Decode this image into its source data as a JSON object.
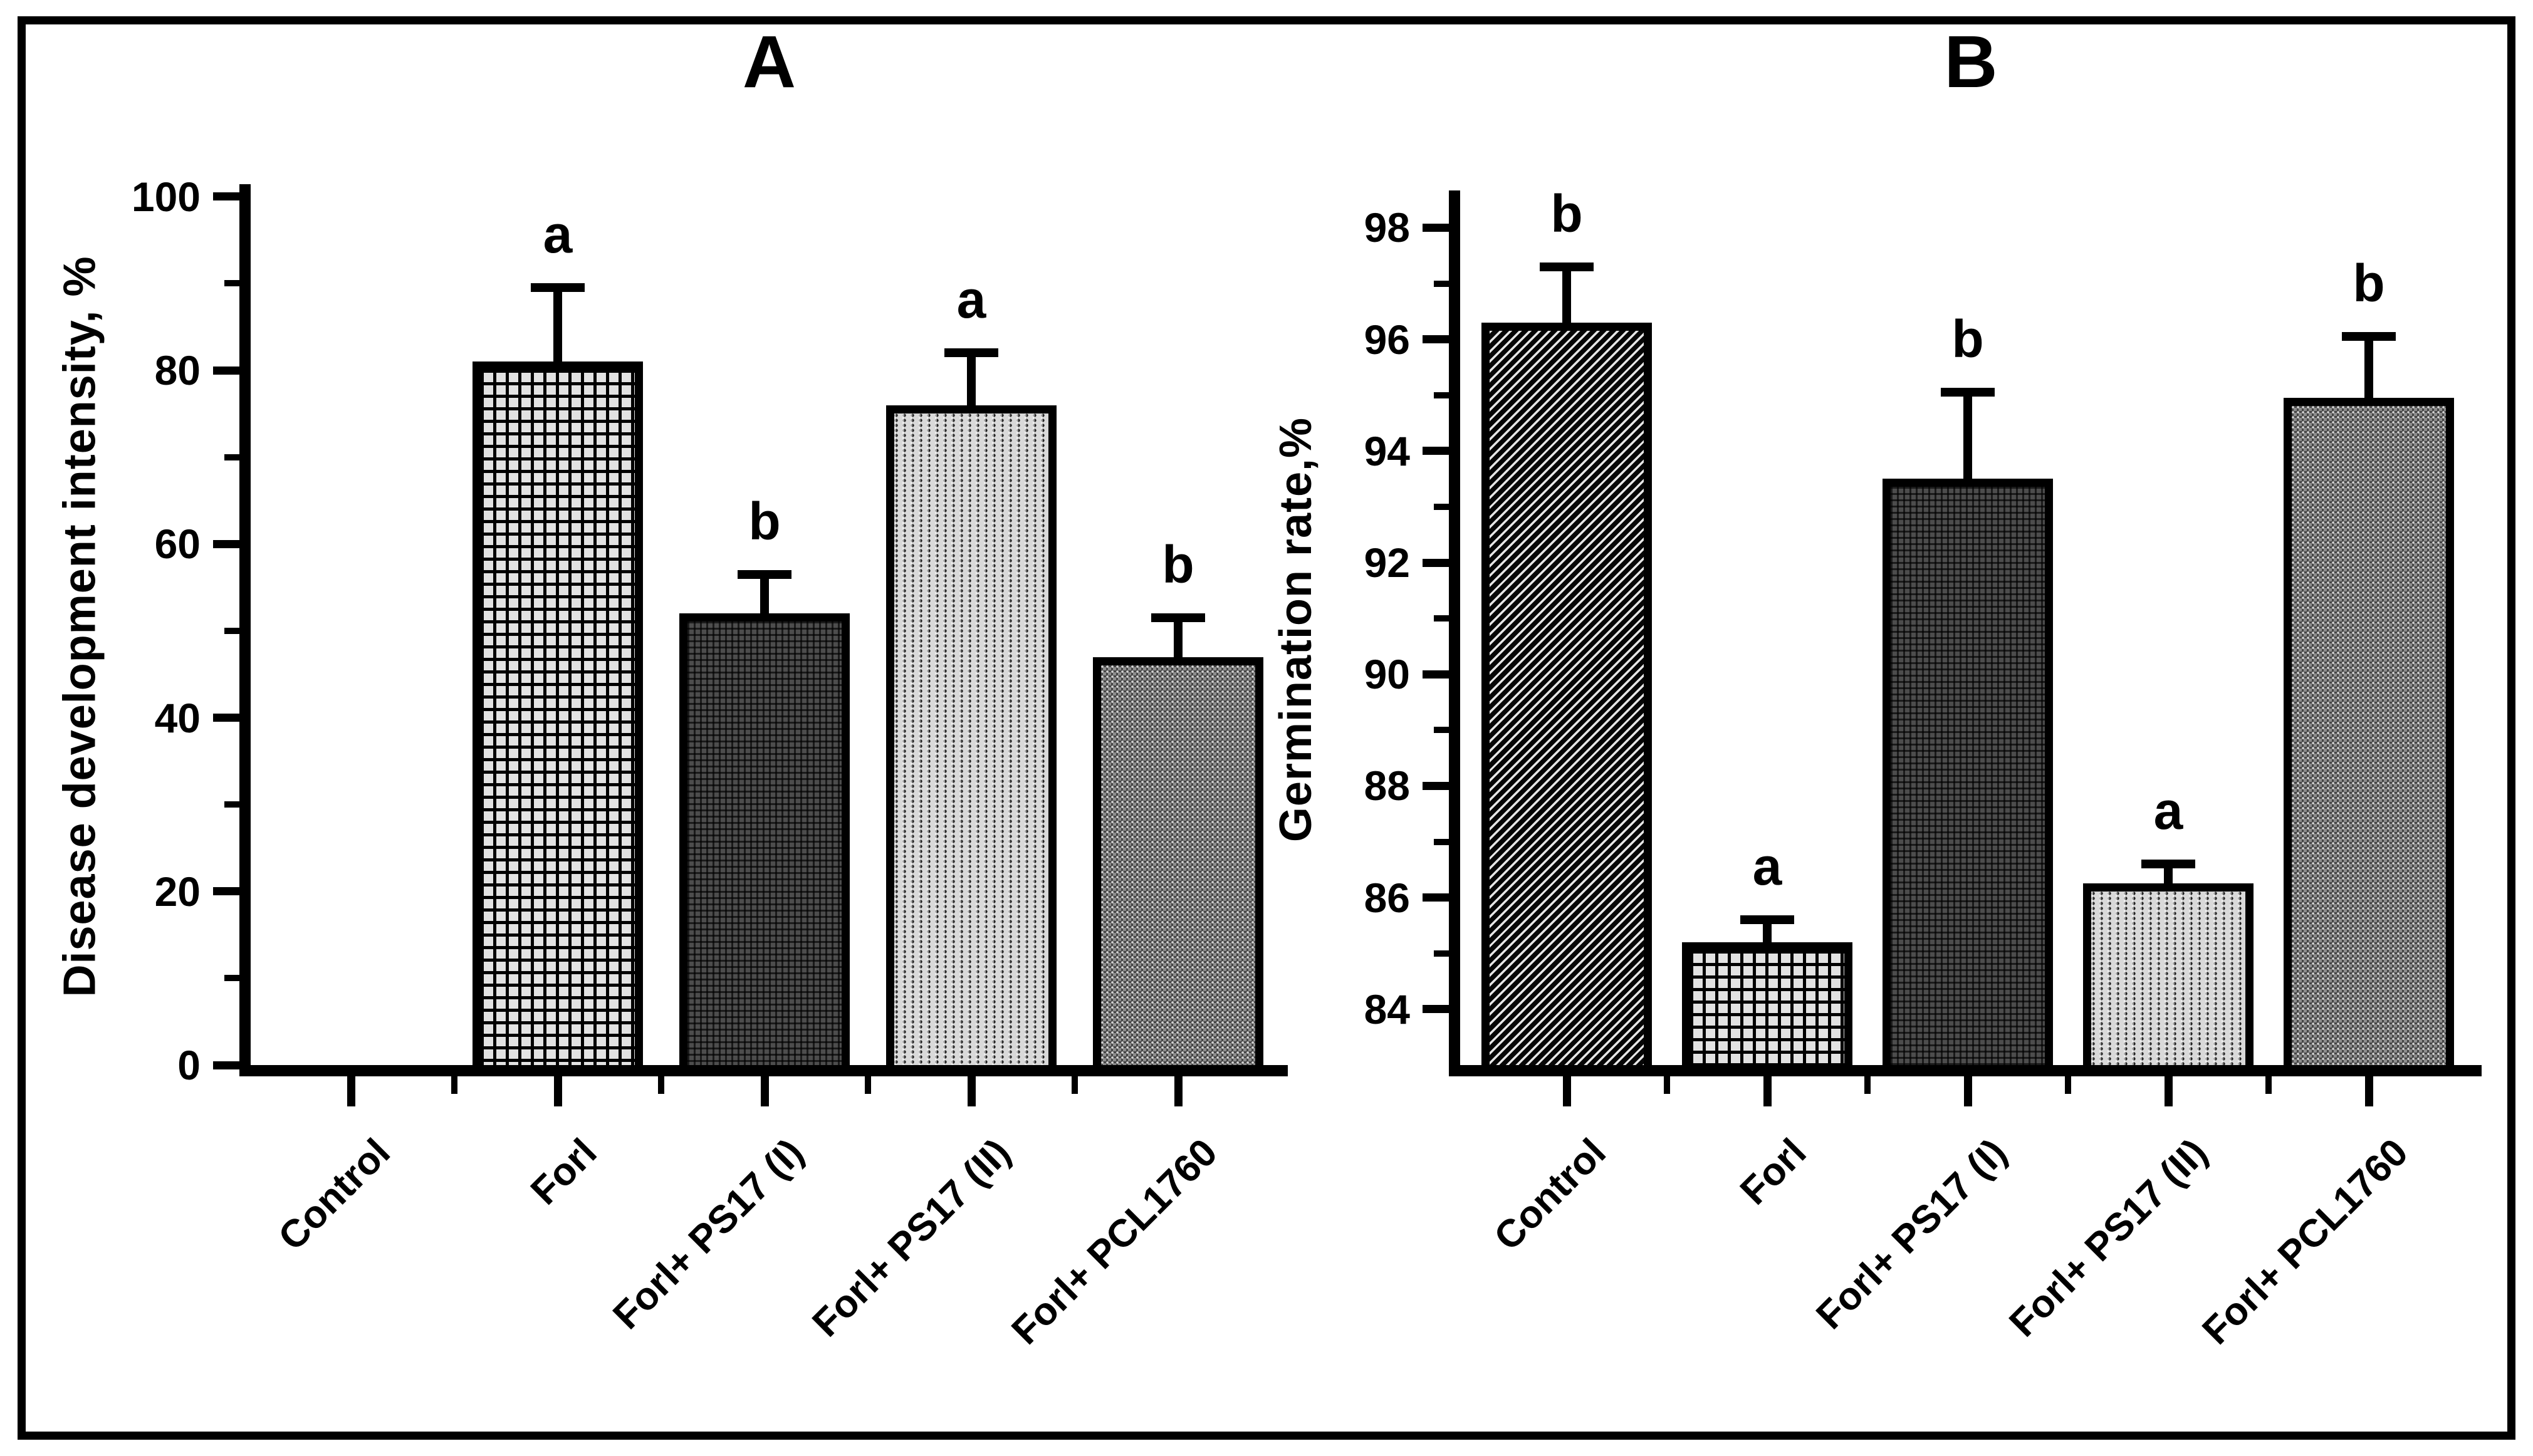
{
  "figure": {
    "background": "#ffffff",
    "border_color": "#000000",
    "text_color": "#000000"
  },
  "chart_data": [
    {
      "type": "bar",
      "panel_label": "A",
      "title": "A",
      "xlabel": "",
      "ylabel": "Disease development intensity, %",
      "ylim": [
        0,
        101
      ],
      "yticks": [
        0,
        20,
        40,
        60,
        80,
        100
      ],
      "yminorticks": [
        10,
        30,
        50,
        70,
        90
      ],
      "grid": false,
      "legend": "none",
      "categories": [
        "Control",
        "Forl",
        "Forl+ PS17 (I)",
        "Forl+ PS17 (II)",
        "Forl+ PCL1760"
      ],
      "values": [
        0,
        81,
        52,
        76,
        47
      ],
      "errors_upper": [
        null,
        8.5,
        4.5,
        6,
        4.5
      ],
      "sig_letters": [
        null,
        "a",
        "b",
        "a",
        "b"
      ],
      "patterns": [
        "none",
        "grid",
        "darkdot",
        "vdots",
        "mesh"
      ]
    },
    {
      "type": "bar",
      "panel_label": "B",
      "title": "B",
      "xlabel": "",
      "ylabel": "Germination rate,%",
      "ylim": [
        83,
        98.6
      ],
      "yticks": [
        84,
        86,
        88,
        90,
        92,
        94,
        96,
        98
      ],
      "yminorticks": [
        85,
        87,
        89,
        91,
        93,
        95,
        97
      ],
      "grid": false,
      "legend": "none",
      "categories": [
        "Control",
        "Forl",
        "Forl+ PS17 (I)",
        "Forl+ PS17 (II)",
        "Forl+ PCL1760"
      ],
      "values": [
        96.3,
        85.2,
        93.5,
        86.25,
        94.95
      ],
      "errors_upper": [
        1.0,
        0.4,
        1.55,
        0.35,
        1.1
      ],
      "sig_letters": [
        "b",
        "a",
        "b",
        "a",
        "b"
      ],
      "patterns": [
        "diag",
        "grid",
        "darkdot",
        "vdots",
        "mesh"
      ]
    }
  ]
}
